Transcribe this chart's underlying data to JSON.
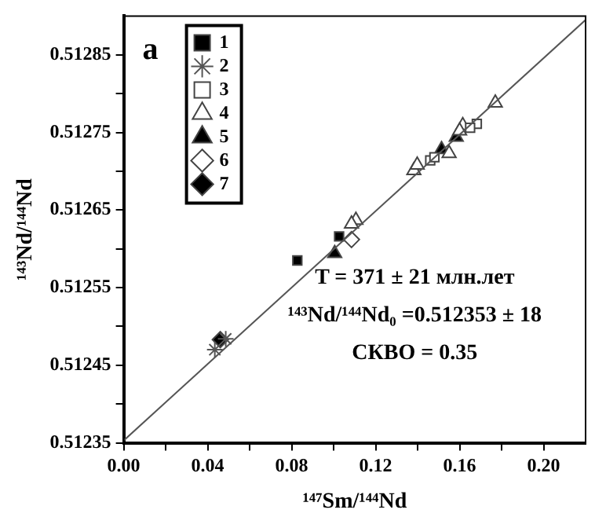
{
  "chart_data": {
    "type": "scatter",
    "xlabel": "¹⁴⁷Sm/¹⁴⁴Nd",
    "ylabel": "¹⁴³Nd/¹⁴⁴Nd",
    "xlim": [
      0,
      0.22
    ],
    "xticks": [
      {
        "value": 0,
        "label": "0.00"
      },
      {
        "value": 0.02,
        "label": null
      },
      {
        "value": 0.04,
        "label": "0.04"
      },
      {
        "value": 0.06,
        "label": null
      },
      {
        "value": 0.08,
        "label": "0.08"
      },
      {
        "value": 0.1,
        "label": null
      },
      {
        "value": 0.12,
        "label": "0.12"
      },
      {
        "value": 0.14,
        "label": null
      },
      {
        "value": 0.16,
        "label": "0.16"
      },
      {
        "value": 0.18,
        "label": null
      },
      {
        "value": 0.2,
        "label": "0.20"
      }
    ],
    "ylim": [
      0.51235,
      0.5129
    ],
    "yticks": [
      0.51235,
      {
        "value": 0.5124,
        "label": null
      },
      0.51245,
      {
        "value": 0.5125,
        "label": null
      },
      0.51255,
      {
        "value": 0.5126,
        "label": null
      },
      0.51265,
      {
        "value": 0.5127,
        "label": null
      },
      0.51275,
      {
        "value": 0.5128,
        "label": null
      },
      0.51285
    ],
    "grid": false,
    "legend": "top left",
    "annotations": [
      "a",
      "T = 371 ± 21 млн.лет",
      "¹⁴³Nd/¹⁴⁴Nd₀ =0.512353 ± 18",
      "СКВО = 0.35"
    ],
    "series": [
      {
        "type": "line",
        "marker": "none",
        "color": "#555555",
        "x": [
          0,
          0.22
        ],
        "values": [
          0.512353,
          0.512895
        ]
      },
      {
        "name": "1",
        "marker": "square",
        "color": "#000000",
        "x": [
          0.0827,
          0.1026
        ],
        "values": [
          0.512585,
          0.512616
        ]
      },
      {
        "name": "2",
        "marker": "cross",
        "color": "#555555",
        "x": [
          0.0434,
          0.0486
        ],
        "values": [
          0.51247,
          0.512484
        ]
      },
      {
        "name": "3",
        "marker": "square",
        "color": "#ffffff",
        "x": [
          0.146,
          0.148,
          0.1682,
          0.165
        ],
        "values": [
          0.512714,
          0.512718,
          0.512761,
          0.512756
        ]
      },
      {
        "name": "4",
        "marker": "triangle",
        "color": "#ffffff",
        "x": [
          0.1106,
          0.1085,
          0.1382,
          0.1398,
          0.155,
          0.1615,
          0.16,
          0.177
        ],
        "values": [
          0.512637,
          0.512632,
          0.512701,
          0.512708,
          0.512723,
          0.512759,
          0.512752,
          0.512788
        ]
      },
      {
        "name": "5",
        "marker": "triangle",
        "color": "#000000",
        "x": [
          0.1005,
          0.1514,
          0.1584
        ],
        "values": [
          0.512594,
          0.512728,
          0.512744
        ]
      },
      {
        "name": "6",
        "marker": "diamond",
        "color": "#ffffff",
        "x": [
          0.1085
        ],
        "values": [
          0.512612
        ]
      },
      {
        "name": "7",
        "marker": "diamond",
        "color": "#000000",
        "x": [
          0.046
        ],
        "values": [
          0.512483
        ]
      }
    ]
  }
}
